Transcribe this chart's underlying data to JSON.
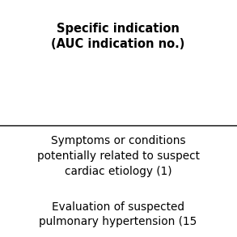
{
  "header_line1": "Specific indication",
  "header_line2": "(AUC indication no.)",
  "row1": "Symptoms or conditions\npotentially related to suspect\ncardiac etiology (1)",
  "row2": "Evaluation of suspected\npulmonary hypertension (15",
  "bg_color": "#ffffff",
  "header_color": "#000000",
  "text_color": "#000000",
  "line_color": "#000000",
  "header_fontsize": 10.5,
  "body_fontsize": 9.8,
  "fig_width": 2.93,
  "fig_height": 2.93,
  "dpi": 100
}
